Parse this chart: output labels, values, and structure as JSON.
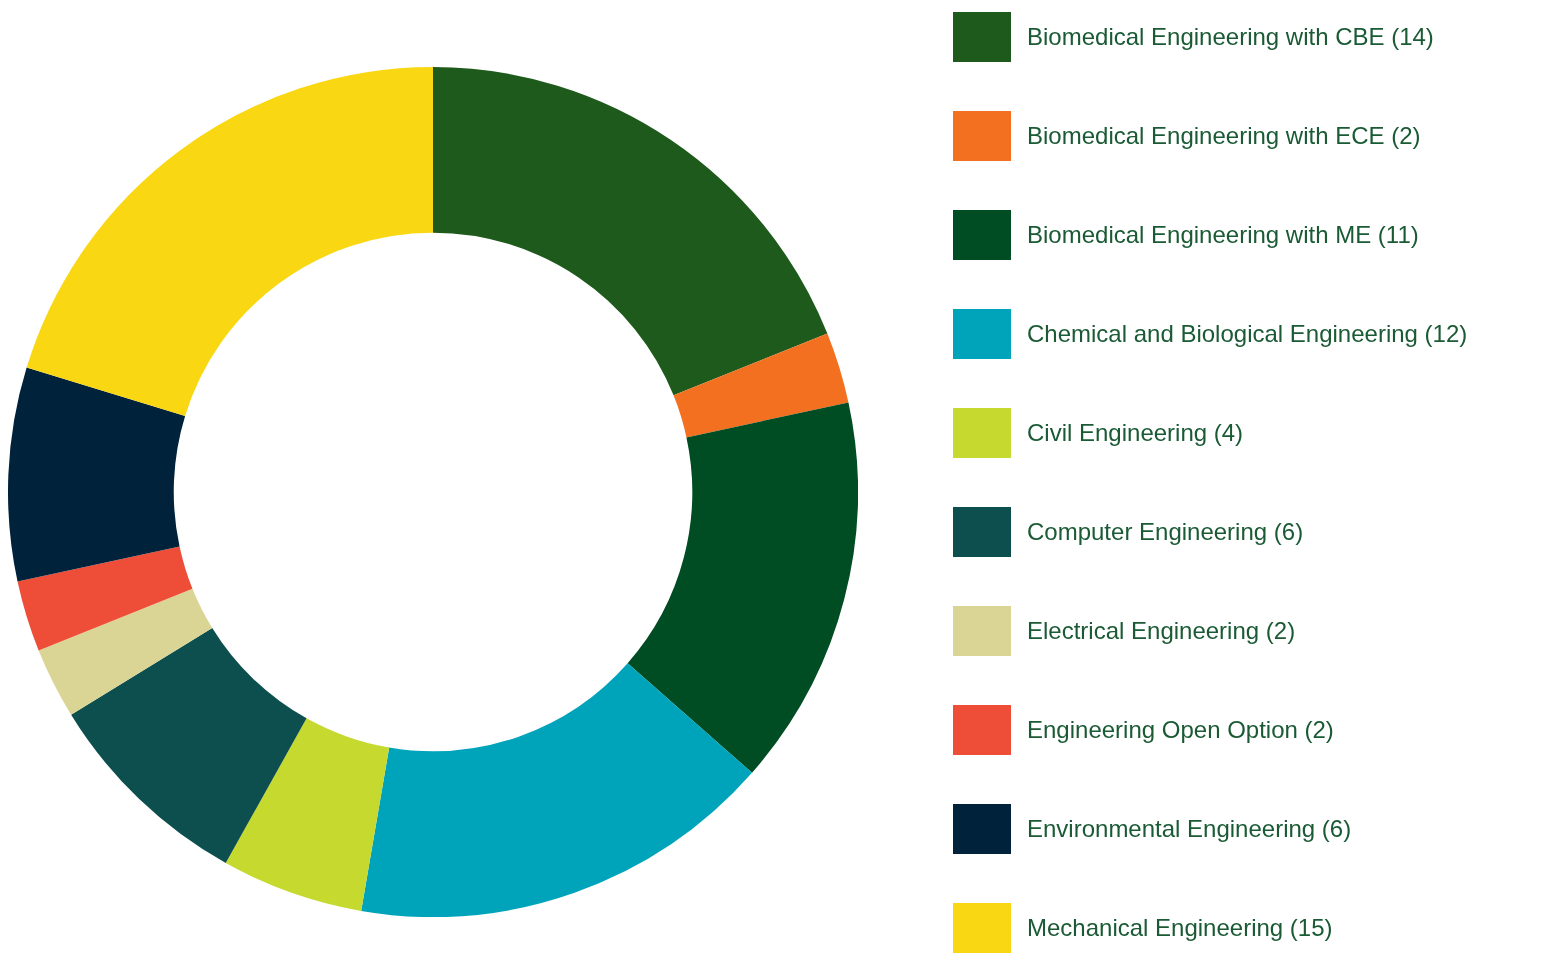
{
  "chart_data": {
    "type": "donut",
    "categories": [
      "Biomedical Engineering with CBE (14)",
      "Biomedical Engineering with ECE (2)",
      "Biomedical Engineering with ME (11)",
      "Chemical and Biological Engineering (12)",
      "Civil Engineering (4)",
      "Computer Engineering (6)",
      "Electrical Engineering (2)",
      "Engineering Open Option (2)",
      "Environmental Engineering (6)",
      "Mechanical Engineering (15)"
    ],
    "values": [
      14,
      2,
      11,
      12,
      4,
      6,
      2,
      2,
      6,
      15
    ],
    "colors": [
      "#1e5a1c",
      "#f37021",
      "#004c23",
      "#00a4ba",
      "#c6d92e",
      "#0d4f4e",
      "#dbd595",
      "#ee4e37",
      "#00223a",
      "#f9d712"
    ],
    "legend": "right"
  }
}
